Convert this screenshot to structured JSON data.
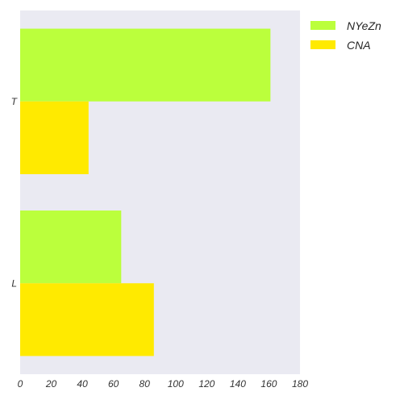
{
  "chart_data": {
    "type": "bar",
    "orientation": "horizontal",
    "categories": [
      "T",
      "L"
    ],
    "series": [
      {
        "name": "NYeZn",
        "values": [
          161,
          65
        ],
        "color": "#bbff3c"
      },
      {
        "name": "CNA",
        "values": [
          44,
          86
        ],
        "color": "#ffea00"
      }
    ],
    "xlim": [
      0,
      180
    ],
    "xticks": [
      0,
      20,
      40,
      60,
      80,
      100,
      120,
      140,
      160,
      180
    ],
    "title": "",
    "xlabel": "",
    "ylabel": "",
    "grid": false,
    "legend_position": "outside-top-right",
    "background_color": "#eaeaf2"
  }
}
